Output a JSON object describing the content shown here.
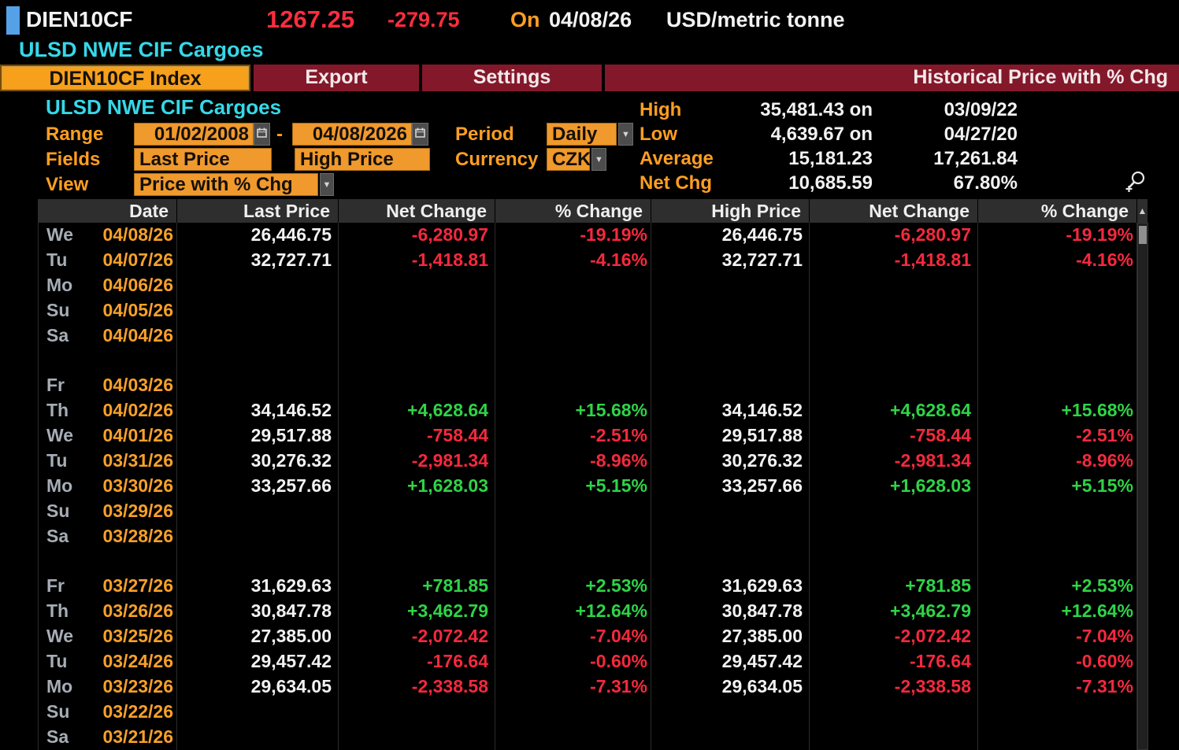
{
  "titlebar": {
    "ticker": "DIEN10CF",
    "last_price": "1267.25",
    "change": "-279.75",
    "on_label": "On",
    "date": "04/08/26",
    "unit": "USD/metric tonne"
  },
  "security_line": "ULSD NWE CIF Cargoes",
  "tabs": [
    {
      "label": "DIEN10CF Index",
      "active": true
    },
    {
      "label": "Export",
      "active": false
    },
    {
      "label": "Settings",
      "active": false
    },
    {
      "label": "Historical Price with % Chg",
      "active": false
    }
  ],
  "controls": {
    "security_title": "ULSD NWE CIF Cargoes",
    "range_label": "Range",
    "range_start": "01/02/2008",
    "range_separator": "-",
    "range_end": "04/08/2026",
    "period_label": "Period",
    "period_value": "Daily",
    "fields_label": "Fields",
    "field1": "Last Price",
    "field2": "High Price",
    "currency_label": "Currency",
    "currency_value": "CZK",
    "view_label": "View",
    "view_value": "Price with % Chg"
  },
  "stats": {
    "rows": [
      {
        "label": "High",
        "value": "35,481.43 on",
        "extra": "03/09/22"
      },
      {
        "label": "Low",
        "value": "4,639.67 on",
        "extra": "04/27/20"
      },
      {
        "label": "Average",
        "value": "15,181.23",
        "extra": "17,261.84"
      },
      {
        "label": "Net Chg",
        "value": "10,685.59",
        "extra": "67.80%"
      }
    ]
  },
  "table": {
    "headers": [
      "Date",
      "Last Price",
      "Net Change",
      "% Change",
      "High Price",
      "Net Change",
      "% Change"
    ],
    "sort_icon": "▲",
    "rows": [
      {
        "dow": "We",
        "date": "04/08/26",
        "last": "26,446.75",
        "net": "-6,280.97",
        "pct": "-19.19%",
        "high": "26,446.75",
        "hnet": "-6,280.97",
        "hpct": "-19.19%"
      },
      {
        "dow": "Tu",
        "date": "04/07/26",
        "last": "32,727.71",
        "net": "-1,418.81",
        "pct": "-4.16%",
        "high": "32,727.71",
        "hnet": "-1,418.81",
        "hpct": "-4.16%"
      },
      {
        "dow": "Mo",
        "date": "04/06/26",
        "last": "",
        "net": "",
        "pct": "",
        "high": "",
        "hnet": "",
        "hpct": ""
      },
      {
        "dow": "Su",
        "date": "04/05/26",
        "last": "",
        "net": "",
        "pct": "",
        "high": "",
        "hnet": "",
        "hpct": ""
      },
      {
        "dow": "Sa",
        "date": "04/04/26",
        "last": "",
        "net": "",
        "pct": "",
        "high": "",
        "hnet": "",
        "hpct": ""
      },
      {
        "dow": "",
        "date": "",
        "last": "",
        "net": "",
        "pct": "",
        "high": "",
        "hnet": "",
        "hpct": ""
      },
      {
        "dow": "Fr",
        "date": "04/03/26",
        "last": "",
        "net": "",
        "pct": "",
        "high": "",
        "hnet": "",
        "hpct": ""
      },
      {
        "dow": "Th",
        "date": "04/02/26",
        "last": "34,146.52",
        "net": "+4,628.64",
        "pct": "+15.68%",
        "high": "34,146.52",
        "hnet": "+4,628.64",
        "hpct": "+15.68%"
      },
      {
        "dow": "We",
        "date": "04/01/26",
        "last": "29,517.88",
        "net": "-758.44",
        "pct": "-2.51%",
        "high": "29,517.88",
        "hnet": "-758.44",
        "hpct": "-2.51%"
      },
      {
        "dow": "Tu",
        "date": "03/31/26",
        "last": "30,276.32",
        "net": "-2,981.34",
        "pct": "-8.96%",
        "high": "30,276.32",
        "hnet": "-2,981.34",
        "hpct": "-8.96%"
      },
      {
        "dow": "Mo",
        "date": "03/30/26",
        "last": "33,257.66",
        "net": "+1,628.03",
        "pct": "+5.15%",
        "high": "33,257.66",
        "hnet": "+1,628.03",
        "hpct": "+5.15%"
      },
      {
        "dow": "Su",
        "date": "03/29/26",
        "last": "",
        "net": "",
        "pct": "",
        "high": "",
        "hnet": "",
        "hpct": ""
      },
      {
        "dow": "Sa",
        "date": "03/28/26",
        "last": "",
        "net": "",
        "pct": "",
        "high": "",
        "hnet": "",
        "hpct": ""
      },
      {
        "dow": "",
        "date": "",
        "last": "",
        "net": "",
        "pct": "",
        "high": "",
        "hnet": "",
        "hpct": ""
      },
      {
        "dow": "Fr",
        "date": "03/27/26",
        "last": "31,629.63",
        "net": "+781.85",
        "pct": "+2.53%",
        "high": "31,629.63",
        "hnet": "+781.85",
        "hpct": "+2.53%"
      },
      {
        "dow": "Th",
        "date": "03/26/26",
        "last": "30,847.78",
        "net": "+3,462.79",
        "pct": "+12.64%",
        "high": "30,847.78",
        "hnet": "+3,462.79",
        "hpct": "+12.64%"
      },
      {
        "dow": "We",
        "date": "03/25/26",
        "last": "27,385.00",
        "net": "-2,072.42",
        "pct": "-7.04%",
        "high": "27,385.00",
        "hnet": "-2,072.42",
        "hpct": "-7.04%"
      },
      {
        "dow": "Tu",
        "date": "03/24/26",
        "last": "29,457.42",
        "net": "-176.64",
        "pct": "-0.60%",
        "high": "29,457.42",
        "hnet": "-176.64",
        "hpct": "-0.60%"
      },
      {
        "dow": "Mo",
        "date": "03/23/26",
        "last": "29,634.05",
        "net": "-2,338.58",
        "pct": "-7.31%",
        "high": "29,634.05",
        "hnet": "-2,338.58",
        "hpct": "-7.31%"
      },
      {
        "dow": "Su",
        "date": "03/22/26",
        "last": "",
        "net": "",
        "pct": "",
        "high": "",
        "hnet": "",
        "hpct": ""
      },
      {
        "dow": "Sa",
        "date": "03/21/26",
        "last": "",
        "net": "",
        "pct": "",
        "high": "",
        "hnet": "",
        "hpct": ""
      }
    ]
  },
  "colors": {
    "accent_orange": "#f6a01b",
    "box_orange": "#f0992d",
    "label_orange": "#ff9e21",
    "date_orange": "#f7a02a",
    "price_red": "#ff2d3e",
    "red": "#f5293d",
    "green": "#2fd348",
    "cyan": "#35d8e8",
    "maroon": "#84182b",
    "blue_marker": "#55a1e8",
    "header_bg": "#2e2e2e"
  }
}
